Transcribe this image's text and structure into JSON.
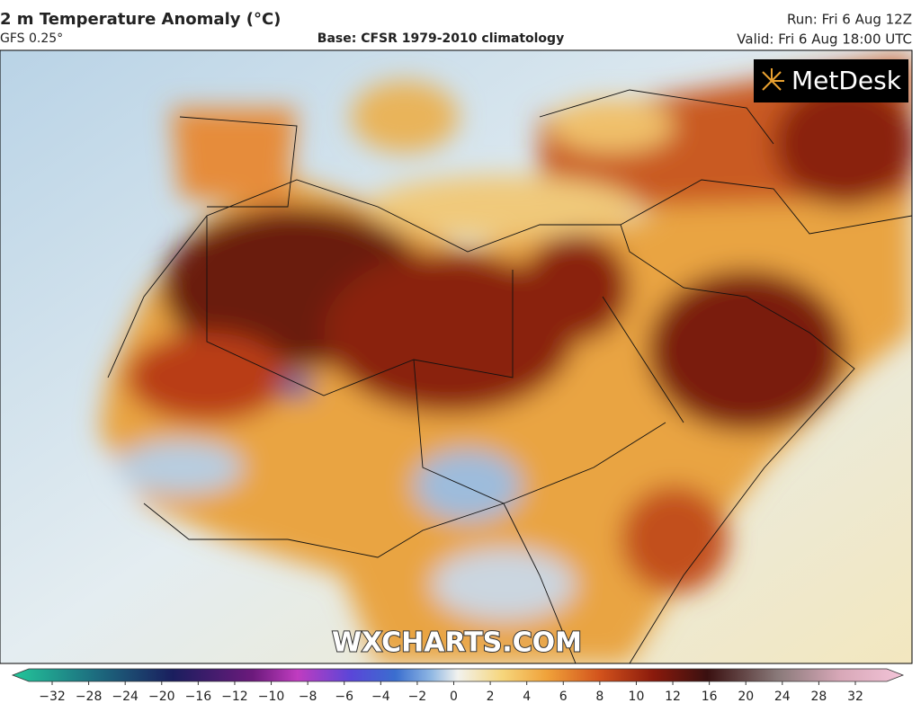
{
  "header": {
    "title": "2 m Temperature Anomaly (°C)",
    "model": "GFS 0.25°",
    "base": "Base: CFSR 1979-2010 climatology",
    "run": "Run: Fri 6 Aug 12Z",
    "valid": "Valid: Fri 6 Aug 18:00 UTC"
  },
  "logo": "MetDesk",
  "watermark": "WXCHARTS.COM",
  "colorbar": {
    "ticks": [
      {
        "value": -32,
        "label": "−32"
      },
      {
        "value": -28,
        "label": "−28"
      },
      {
        "value": -24,
        "label": "−24"
      },
      {
        "value": -20,
        "label": "−20"
      },
      {
        "value": -16,
        "label": "−16"
      },
      {
        "value": -12,
        "label": "−12"
      },
      {
        "value": -10,
        "label": "−10"
      },
      {
        "value": -8,
        "label": "−8"
      },
      {
        "value": -6,
        "label": "−6"
      },
      {
        "value": -4,
        "label": "−4"
      },
      {
        "value": -2,
        "label": "−2"
      },
      0,
      2,
      4,
      6,
      8,
      10,
      12,
      16,
      20,
      24,
      28,
      32
    ]
  }
}
